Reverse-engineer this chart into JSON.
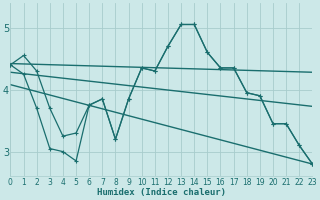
{
  "xlabel": "Humidex (Indice chaleur)",
  "bg_color": "#cce8e8",
  "grid_color": "#a8cccc",
  "line_color": "#1a6e6e",
  "x_ticks": [
    0,
    1,
    2,
    3,
    4,
    5,
    6,
    7,
    8,
    9,
    10,
    11,
    12,
    13,
    14,
    15,
    16,
    17,
    18,
    19,
    20,
    21,
    22,
    23
  ],
  "y_ticks": [
    3,
    4,
    5
  ],
  "ylim": [
    2.6,
    5.4
  ],
  "xlim": [
    0,
    23
  ],
  "line_upper_x": [
    0,
    1,
    2,
    3,
    4,
    5,
    6,
    7,
    8,
    9,
    10,
    11,
    12,
    13,
    14,
    15,
    16,
    17,
    18,
    19,
    20,
    21,
    22,
    23
  ],
  "line_upper_y": [
    4.4,
    4.55,
    4.3,
    3.7,
    3.25,
    3.3,
    3.75,
    3.85,
    3.2,
    3.85,
    4.35,
    4.3,
    4.7,
    5.05,
    5.05,
    4.6,
    4.35,
    4.35,
    3.95,
    3.9,
    3.45,
    3.45,
    3.1,
    2.8
  ],
  "line_lower_x": [
    0,
    1,
    2,
    3,
    4,
    5,
    6,
    7,
    8,
    9,
    10,
    11,
    12,
    13,
    14,
    15,
    16,
    17,
    18,
    19,
    20,
    21,
    22,
    23
  ],
  "line_lower_y": [
    4.4,
    4.25,
    3.7,
    3.05,
    3.0,
    2.85,
    3.75,
    3.85,
    3.2,
    3.85,
    4.35,
    4.3,
    4.7,
    5.05,
    5.05,
    4.6,
    4.35,
    4.35,
    3.95,
    3.9,
    3.45,
    3.45,
    3.1,
    2.8
  ],
  "trend1_x": [
    0,
    23
  ],
  "trend1_y": [
    4.42,
    4.28
  ],
  "trend2_x": [
    0,
    23
  ],
  "trend2_y": [
    4.28,
    3.73
  ],
  "trend3_x": [
    0,
    23
  ],
  "trend3_y": [
    4.08,
    2.8
  ]
}
